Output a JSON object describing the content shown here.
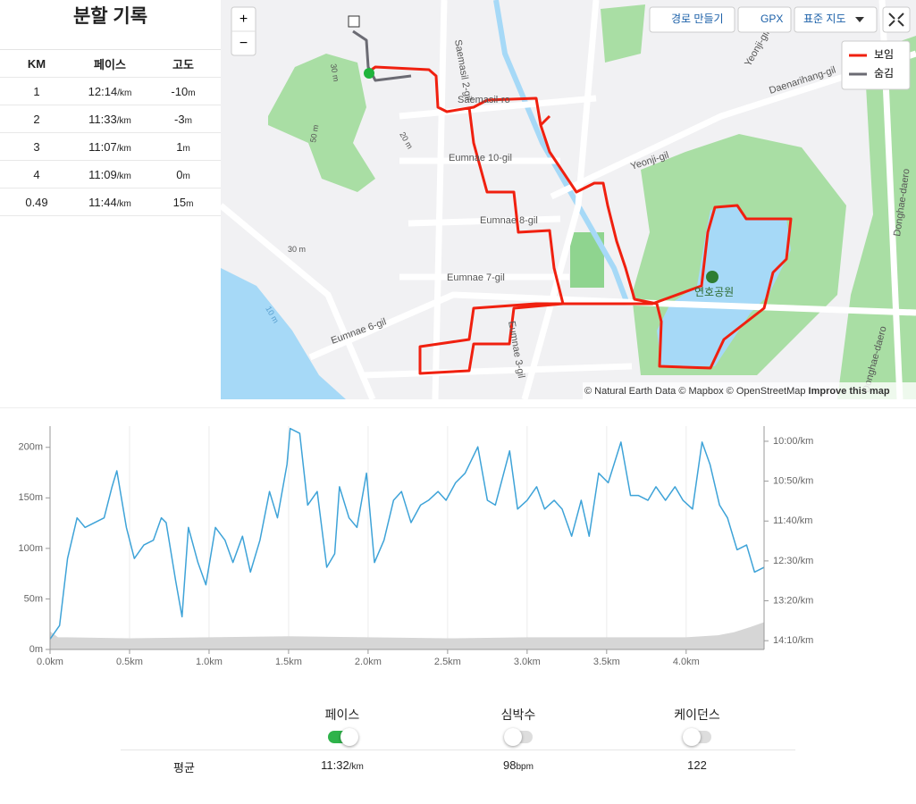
{
  "splits": {
    "title": "분할 기록",
    "headers": [
      "KM",
      "페이스",
      "고도"
    ],
    "rows": [
      {
        "km": "1",
        "pace": "12:14",
        "pace_unit": "/km",
        "elevation": "-10",
        "elevation_unit": "m"
      },
      {
        "km": "2",
        "pace": "11:33",
        "pace_unit": "/km",
        "elevation": "-3",
        "elevation_unit": "m"
      },
      {
        "km": "3",
        "pace": "11:07",
        "pace_unit": "/km",
        "elevation": "1",
        "elevation_unit": "m"
      },
      {
        "km": "4",
        "pace": "11:09",
        "pace_unit": "/km",
        "elevation": "0",
        "elevation_unit": "m"
      },
      {
        "km": "0.49",
        "pace": "11:44",
        "pace_unit": "/km",
        "elevation": "15",
        "elevation_unit": "m"
      }
    ]
  },
  "map": {
    "zoom_in": "+",
    "zoom_out": "−",
    "buttons": [
      "경로 만들기",
      "GPX",
      "표준 지도"
    ],
    "legend": [
      {
        "name": "보임",
        "color": "#f0200f"
      },
      {
        "name": "숨김",
        "color": "#6b6b73"
      }
    ],
    "attribution": "© Natural Earth Data © Mapbox © OpenStreetMap",
    "improve": "Improve this map",
    "labels": [
      "Saemasil 2-gil",
      "Saemasil-ro",
      "Eumnae 10-gil",
      "Eumnae 8-gil",
      "Eumnae 7-gil",
      "Eumnae 6-gil",
      "Eumnae 3-gil",
      "Yeonji-gil",
      "Daenarihang-gil",
      "Yeonji-gil",
      "Donghae-daero",
      "Donghae-daero",
      "연호공원",
      "30 m",
      "50 m",
      "20 m",
      "30 m",
      "10 m"
    ]
  },
  "chart_data": {
    "type": "line",
    "xlim": [
      0,
      4.49
    ],
    "xticks": [
      {
        "value": 0,
        "label": "0.0km"
      },
      {
        "value": 0.5,
        "label": "0.5km"
      },
      {
        "value": 1,
        "label": "1.0km"
      },
      {
        "value": 1.5,
        "label": "1.5km"
      },
      {
        "value": 2,
        "label": "2.0km"
      },
      {
        "value": 2.5,
        "label": "2.5km"
      },
      {
        "value": 3,
        "label": "3.0km"
      },
      {
        "value": 3.5,
        "label": "3.5km"
      },
      {
        "value": 4,
        "label": "4.0km"
      }
    ],
    "ylim": [
      0,
      221
    ],
    "yticks": [
      {
        "value": 0,
        "label": "0m"
      },
      {
        "value": 50,
        "label": "50m"
      },
      {
        "value": 100,
        "label": "100m"
      },
      {
        "value": 150,
        "label": "150m"
      },
      {
        "value": 200,
        "label": "200m"
      }
    ],
    "y2lim": [
      861,
      581
    ],
    "y2ticks": [
      {
        "value": 600,
        "label": "10:00/km"
      },
      {
        "value": 650,
        "label": "10:50/km"
      },
      {
        "value": 700,
        "label": "11:40/km"
      },
      {
        "value": 750,
        "label": "12:30/km"
      },
      {
        "value": 800,
        "label": "13:20/km"
      },
      {
        "value": 850,
        "label": "14:10/km"
      }
    ],
    "grid": "x",
    "series": [
      {
        "type": "area",
        "color": "#d6d6d6",
        "x": [
          0,
          0.05,
          0.1,
          0.5,
          1.0,
          1.5,
          2.0,
          2.5,
          3.0,
          3.5,
          4.0,
          4.2,
          4.3,
          4.4,
          4.49
        ],
        "values": [
          18,
          12,
          12,
          11,
          12,
          13,
          12,
          11,
          12,
          12,
          12,
          14,
          17,
          22,
          27
        ]
      },
      {
        "type": "line",
        "axis": "y2",
        "color": "#3ea3d8",
        "x": [
          0,
          0.06,
          0.11,
          0.17,
          0.22,
          0.28,
          0.34,
          0.39,
          0.42,
          0.48,
          0.53,
          0.59,
          0.65,
          0.7,
          0.73,
          0.79,
          0.83,
          0.87,
          0.93,
          0.98,
          1.04,
          1.1,
          1.15,
          1.21,
          1.26,
          1.32,
          1.38,
          1.43,
          1.49,
          1.51,
          1.57,
          1.62,
          1.68,
          1.74,
          1.79,
          1.82,
          1.88,
          1.93,
          1.99,
          2.04,
          2.1,
          2.16,
          2.21,
          2.27,
          2.33,
          2.38,
          2.44,
          2.49,
          2.55,
          2.61,
          2.69,
          2.75,
          2.8,
          2.89,
          2.94,
          3.0,
          3.06,
          3.11,
          3.17,
          3.22,
          3.28,
          3.34,
          3.39,
          3.45,
          3.51,
          3.59,
          3.65,
          3.7,
          3.76,
          3.81,
          3.87,
          3.93,
          3.98,
          4.04,
          4.1,
          4.15,
          4.21,
          4.26,
          4.32,
          4.38,
          4.43,
          4.49
        ],
        "values": [
          848,
          831,
          747,
          696,
          708,
          702,
          696,
          657,
          637,
          708,
          747,
          730,
          724,
          696,
          702,
          775,
          820,
          708,
          752,
          780,
          708,
          724,
          752,
          719,
          764,
          724,
          663,
          696,
          629,
          584,
          590,
          680,
          663,
          758,
          741,
          657,
          696,
          708,
          640,
          752,
          724,
          674,
          663,
          702,
          680,
          674,
          663,
          674,
          652,
          640,
          607,
          674,
          680,
          612,
          685,
          674,
          657,
          685,
          674,
          685,
          719,
          674,
          719,
          640,
          652,
          601,
          668,
          668,
          674,
          657,
          674,
          657,
          674,
          685,
          601,
          629,
          680,
          696,
          736,
          730,
          764,
          758
        ]
      }
    ]
  },
  "summary": {
    "metrics": [
      {
        "name": "페이스",
        "on": true
      },
      {
        "name": "심박수",
        "on": false
      },
      {
        "name": "케이던스",
        "on": false
      }
    ],
    "row_label": "평균",
    "values": [
      {
        "value": "11:32",
        "unit": "/km"
      },
      {
        "value": "98",
        "unit": "bpm"
      },
      {
        "value": "122"
      }
    ]
  }
}
